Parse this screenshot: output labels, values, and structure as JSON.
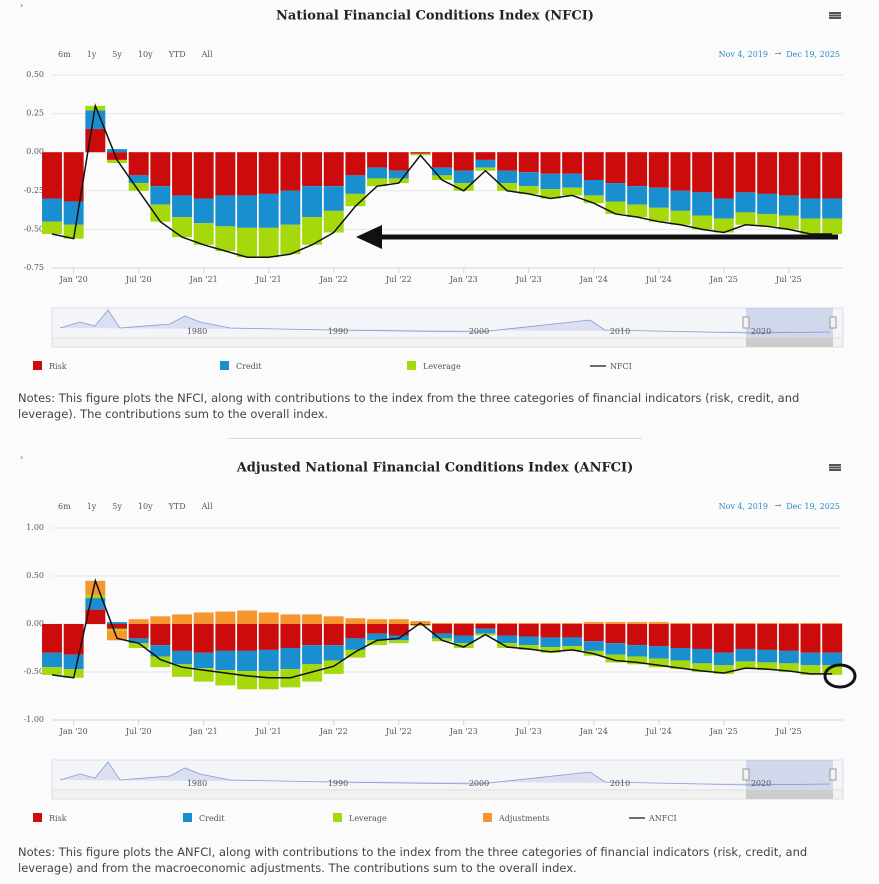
{
  "chart_data": [
    {
      "type": "bar",
      "title": "National Financial Conditions Index (NFCI)",
      "range_buttons": [
        "6m",
        "1y",
        "5y",
        "10y",
        "YTD",
        "All"
      ],
      "date_from": "Nov 4, 2019",
      "date_arrow": "→",
      "date_to": "Dec 19, 2025",
      "x": [
        "2019-11",
        "2020-01",
        "2020-03",
        "2020-05",
        "2020-07",
        "2020-09",
        "2020-11",
        "2021-01",
        "2021-03",
        "2021-05",
        "2021-07",
        "2021-09",
        "2021-11",
        "2022-01",
        "2022-03",
        "2022-05",
        "2022-07",
        "2022-09",
        "2022-11",
        "2023-01",
        "2023-03",
        "2023-05",
        "2023-07",
        "2023-09",
        "2023-11",
        "2024-01",
        "2024-03",
        "2024-05",
        "2024-07",
        "2024-09",
        "2024-11",
        "2025-01",
        "2025-03",
        "2025-05",
        "2025-07",
        "2025-09",
        "2025-11"
      ],
      "xlim": [
        "2019-11",
        "2025-12"
      ],
      "xticks": [
        {
          "value": "2020-01",
          "label": "Jan '20"
        },
        {
          "value": "2020-07",
          "label": "Jul '20"
        },
        {
          "value": "2021-01",
          "label": "Jan '21"
        },
        {
          "value": "2021-07",
          "label": "Jul '21"
        },
        {
          "value": "2022-01",
          "label": "Jan '22"
        },
        {
          "value": "2022-07",
          "label": "Jul '22"
        },
        {
          "value": "2023-01",
          "label": "Jan '23"
        },
        {
          "value": "2023-07",
          "label": "Jul '23"
        },
        {
          "value": "2024-01",
          "label": "Jan '24"
        },
        {
          "value": "2024-07",
          "label": "Jul '24"
        },
        {
          "value": "2025-01",
          "label": "Jan '25"
        },
        {
          "value": "2025-07",
          "label": "Jul '25"
        }
      ],
      "ylim": [
        -0.75,
        0.5
      ],
      "yticks": [
        {
          "value": -0.75,
          "label": "-0.75"
        },
        {
          "value": -0.5,
          "label": "-0.50"
        },
        {
          "value": -0.25,
          "label": "-0.25"
        },
        {
          "value": 0,
          "label": "0.00"
        },
        {
          "value": 0.25,
          "label": "0.25"
        },
        {
          "value": 0.5,
          "label": "0.50"
        }
      ],
      "grid": true,
      "series": [
        {
          "name": "Risk",
          "color": "#cc0c0c",
          "values": [
            -0.3,
            -0.32,
            0.15,
            -0.05,
            -0.15,
            -0.22,
            -0.28,
            -0.3,
            -0.28,
            -0.28,
            -0.27,
            -0.25,
            -0.22,
            -0.22,
            -0.15,
            -0.1,
            -0.12,
            -0.01,
            -0.1,
            -0.12,
            -0.05,
            -0.12,
            -0.13,
            -0.14,
            -0.14,
            -0.18,
            -0.2,
            -0.22,
            -0.23,
            -0.25,
            -0.26,
            -0.3,
            -0.26,
            -0.27,
            -0.28,
            -0.3,
            -0.3
          ]
        },
        {
          "name": "Credit",
          "color": "#1a8fd0",
          "values": [
            -0.15,
            -0.15,
            0.12,
            0.02,
            -0.05,
            -0.12,
            -0.14,
            -0.16,
            -0.2,
            -0.21,
            -0.22,
            -0.22,
            -0.2,
            -0.16,
            -0.12,
            -0.07,
            -0.05,
            0,
            -0.05,
            -0.08,
            -0.05,
            -0.08,
            -0.09,
            -0.1,
            -0.09,
            -0.1,
            -0.12,
            -0.12,
            -0.13,
            -0.13,
            -0.15,
            -0.13,
            -0.13,
            -0.13,
            -0.13,
            -0.13,
            -0.13
          ]
        },
        {
          "name": "Leverage",
          "color": "#a6d90c",
          "values": [
            -0.08,
            -0.09,
            0.03,
            -0.02,
            -0.05,
            -0.11,
            -0.13,
            -0.14,
            -0.16,
            -0.19,
            -0.19,
            -0.19,
            -0.18,
            -0.14,
            -0.08,
            -0.05,
            -0.03,
            -0.01,
            -0.03,
            -0.05,
            -0.02,
            -0.05,
            -0.05,
            -0.06,
            -0.05,
            -0.05,
            -0.08,
            -0.08,
            -0.09,
            -0.09,
            -0.09,
            -0.09,
            -0.08,
            -0.08,
            -0.09,
            -0.1,
            -0.1
          ]
        },
        {
          "name": "NFCI",
          "color": "#111111",
          "type": "line",
          "values": [
            -0.53,
            -0.56,
            0.3,
            -0.05,
            -0.25,
            -0.45,
            -0.55,
            -0.6,
            -0.64,
            -0.68,
            -0.68,
            -0.66,
            -0.6,
            -0.52,
            -0.35,
            -0.22,
            -0.2,
            -0.02,
            -0.18,
            -0.25,
            -0.12,
            -0.25,
            -0.27,
            -0.3,
            -0.28,
            -0.33,
            -0.4,
            -0.42,
            -0.45,
            -0.47,
            -0.5,
            -0.52,
            -0.47,
            -0.48,
            -0.5,
            -0.53,
            -0.53
          ]
        }
      ],
      "navigator_labels": [
        "1980",
        "1990",
        "2000",
        "2010",
        "2020"
      ],
      "notes": "Notes: This figure plots the NFCI, along with contributions to the index from the three categories of financial indicators (risk, credit, and leverage). The contributions sum to the overall index."
    },
    {
      "type": "bar",
      "title": "Adjusted National Financial Conditions Index (ANFCI)",
      "range_buttons": [
        "6m",
        "1y",
        "5y",
        "10y",
        "YTD",
        "All"
      ],
      "date_from": "Nov 4, 2019",
      "date_arrow": "→",
      "date_to": "Dec 19, 2025",
      "x": [
        "2019-11",
        "2020-01",
        "2020-03",
        "2020-05",
        "2020-07",
        "2020-09",
        "2020-11",
        "2021-01",
        "2021-03",
        "2021-05",
        "2021-07",
        "2021-09",
        "2021-11",
        "2022-01",
        "2022-03",
        "2022-05",
        "2022-07",
        "2022-09",
        "2022-11",
        "2023-01",
        "2023-03",
        "2023-05",
        "2023-07",
        "2023-09",
        "2023-11",
        "2024-01",
        "2024-03",
        "2024-05",
        "2024-07",
        "2024-09",
        "2024-11",
        "2025-01",
        "2025-03",
        "2025-05",
        "2025-07",
        "2025-09",
        "2025-11"
      ],
      "xlim": [
        "2019-11",
        "2025-12"
      ],
      "xticks": [
        {
          "value": "2020-01",
          "label": "Jan '20"
        },
        {
          "value": "2020-07",
          "label": "Jul '20"
        },
        {
          "value": "2021-01",
          "label": "Jan '21"
        },
        {
          "value": "2021-07",
          "label": "Jul '21"
        },
        {
          "value": "2022-01",
          "label": "Jan '22"
        },
        {
          "value": "2022-07",
          "label": "Jul '22"
        },
        {
          "value": "2023-01",
          "label": "Jan '23"
        },
        {
          "value": "2023-07",
          "label": "Jul '23"
        },
        {
          "value": "2024-01",
          "label": "Jan '24"
        },
        {
          "value": "2024-07",
          "label": "Jul '24"
        },
        {
          "value": "2025-01",
          "label": "Jan '25"
        },
        {
          "value": "2025-07",
          "label": "Jul '25"
        }
      ],
      "ylim": [
        -1,
        1
      ],
      "yticks": [
        {
          "value": -1,
          "label": "-1.00"
        },
        {
          "value": -0.5,
          "label": "-0.50"
        },
        {
          "value": 0,
          "label": "0.00"
        },
        {
          "value": 0.5,
          "label": "0.50"
        },
        {
          "value": 1,
          "label": "1.00"
        }
      ],
      "grid": true,
      "series": [
        {
          "name": "Risk",
          "color": "#cc0c0c",
          "values": [
            -0.3,
            -0.32,
            0.15,
            -0.05,
            -0.15,
            -0.22,
            -0.28,
            -0.3,
            -0.28,
            -0.28,
            -0.27,
            -0.25,
            -0.22,
            -0.22,
            -0.15,
            -0.1,
            -0.12,
            -0.01,
            -0.1,
            -0.12,
            -0.05,
            -0.12,
            -0.13,
            -0.14,
            -0.14,
            -0.18,
            -0.2,
            -0.22,
            -0.23,
            -0.25,
            -0.26,
            -0.3,
            -0.26,
            -0.27,
            -0.28,
            -0.3,
            -0.3
          ]
        },
        {
          "name": "Credit",
          "color": "#1a8fd0",
          "values": [
            -0.15,
            -0.15,
            0.12,
            0.02,
            -0.05,
            -0.12,
            -0.14,
            -0.16,
            -0.2,
            -0.21,
            -0.22,
            -0.22,
            -0.2,
            -0.16,
            -0.12,
            -0.07,
            -0.05,
            0,
            -0.05,
            -0.08,
            -0.05,
            -0.08,
            -0.09,
            -0.1,
            -0.09,
            -0.1,
            -0.12,
            -0.12,
            -0.13,
            -0.13,
            -0.15,
            -0.13,
            -0.13,
            -0.13,
            -0.13,
            -0.13,
            -0.13
          ]
        },
        {
          "name": "Leverage",
          "color": "#a6d90c",
          "values": [
            -0.08,
            -0.09,
            0.03,
            -0.02,
            -0.05,
            -0.11,
            -0.13,
            -0.14,
            -0.16,
            -0.19,
            -0.19,
            -0.19,
            -0.18,
            -0.14,
            -0.08,
            -0.05,
            -0.03,
            -0.01,
            -0.03,
            -0.05,
            -0.02,
            -0.05,
            -0.05,
            -0.06,
            -0.05,
            -0.05,
            -0.08,
            -0.08,
            -0.09,
            -0.09,
            -0.09,
            -0.09,
            -0.08,
            -0.08,
            -0.09,
            -0.1,
            -0.1
          ]
        },
        {
          "name": "Adjustments",
          "color": "#f7962e",
          "values": [
            0,
            0,
            0.15,
            -0.1,
            0.05,
            0.08,
            0.1,
            0.12,
            0.13,
            0.14,
            0.12,
            0.1,
            0.1,
            0.08,
            0.06,
            0.05,
            0.05,
            0.03,
            0.01,
            0.01,
            0.01,
            0.01,
            0.01,
            0.01,
            0.01,
            0.02,
            0.02,
            0.02,
            0.02,
            0.01,
            0.01,
            0.01,
            0.01,
            0.01,
            0.01,
            0.01,
            0.01
          ]
        },
        {
          "name": "ANFCI",
          "color": "#111111",
          "type": "line",
          "values": [
            -0.53,
            -0.56,
            0.45,
            -0.15,
            -0.2,
            -0.37,
            -0.45,
            -0.48,
            -0.51,
            -0.54,
            -0.56,
            -0.56,
            -0.5,
            -0.44,
            -0.29,
            -0.17,
            -0.15,
            0.01,
            -0.17,
            -0.24,
            -0.11,
            -0.24,
            -0.26,
            -0.29,
            -0.27,
            -0.31,
            -0.38,
            -0.4,
            -0.43,
            -0.46,
            -0.49,
            -0.51,
            -0.46,
            -0.47,
            -0.49,
            -0.52,
            -0.52
          ]
        }
      ],
      "navigator_labels": [
        "1980",
        "1990",
        "2000",
        "2010",
        "2020"
      ],
      "notes": "Notes: This figure plots the ANFCI, along with contributions to the index from the three categories of financial indicators (risk, credit, and leverage) and from the macroeconomic adjustments. The contributions sum to the overall index."
    }
  ]
}
